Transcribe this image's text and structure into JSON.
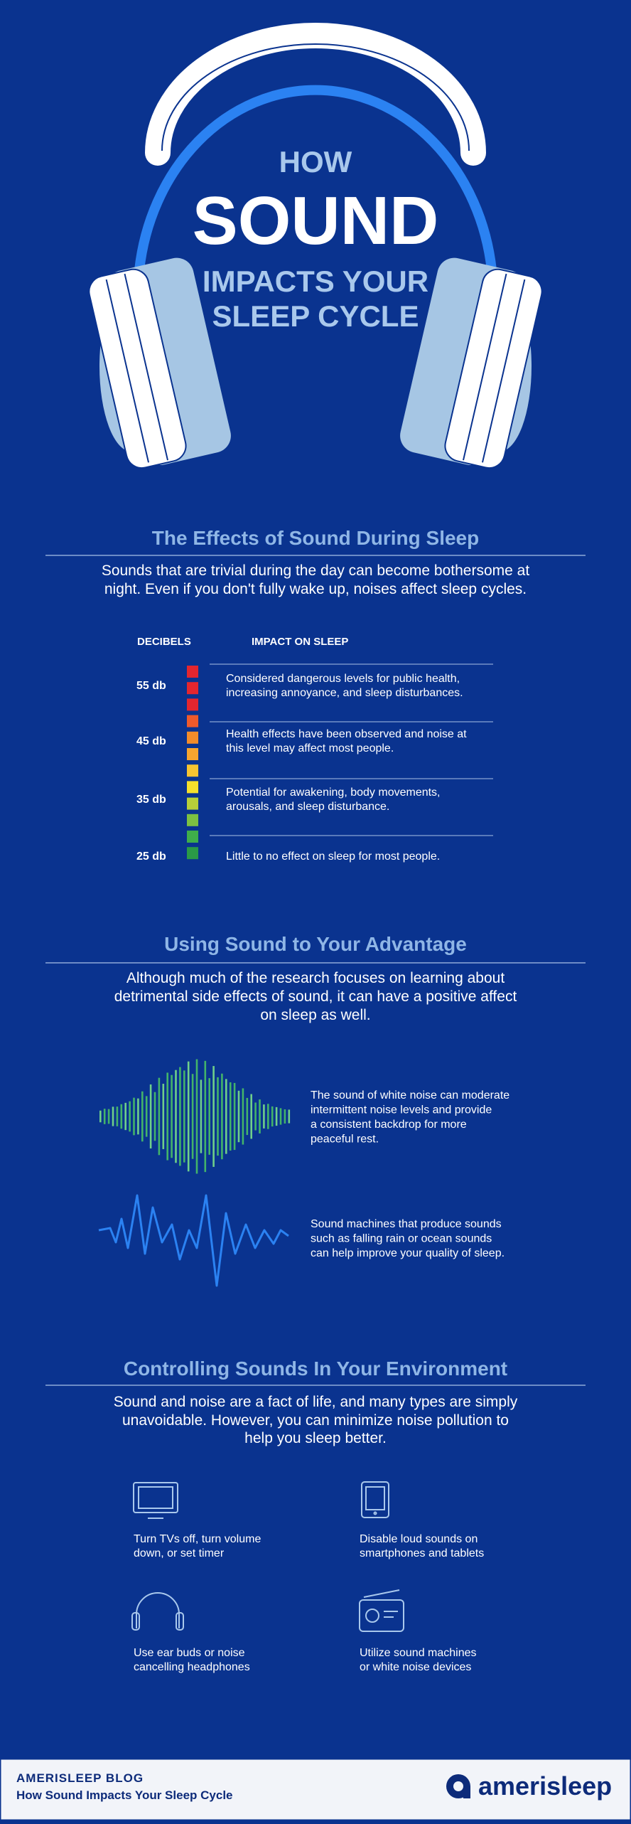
{
  "header": {
    "line1": "HOW",
    "line2": "SOUND",
    "line3": "IMPACTS YOUR",
    "line4": "SLEEP CYCLE"
  },
  "effects": {
    "title": "The Effects of Sound During Sleep",
    "intro": [
      "Sounds that are trivial during the day can become bothersome at",
      "night. Even if you don't fully wake up, noises affect sleep cycles."
    ],
    "columns": [
      "DECIBELS",
      "IMPACT ON SLEEP"
    ],
    "rows": [
      {
        "level": "55 db",
        "impact": [
          "Considered dangerous levels for public health,",
          "increasing annoyance, and sleep disturbances."
        ]
      },
      {
        "level": "45 db",
        "impact": [
          "Health effects have been observed and noise at",
          "this level may affect most people."
        ]
      },
      {
        "level": "35 db",
        "impact": [
          "Potential for awakening, body movements,",
          "arousals, and sleep disturbance."
        ]
      },
      {
        "level": "25 db",
        "impact": [
          "Little to no effect on sleep for most people."
        ]
      }
    ]
  },
  "advantage": {
    "title": "Using Sound to Your Advantage",
    "intro": [
      "Although much of the research focuses on learning about",
      "detrimental side effects of sound, it can have a positive affect",
      "on sleep as well."
    ],
    "items": [
      {
        "text": [
          "The sound of white noise can moderate",
          "intermittent noise levels and provide",
          "a consistent backdrop for more",
          "peaceful rest."
        ]
      },
      {
        "text": [
          "Sound machines that produce sounds",
          "such as falling rain or ocean sounds",
          "can help improve your quality of sleep."
        ]
      }
    ]
  },
  "controlling": {
    "title": "Controlling Sounds In Your Environment",
    "intro": [
      "Sound and noise are a fact of life, and many types are simply",
      "unavoidable. However, you can minimize noise pollution to",
      "help you sleep better."
    ],
    "tips": [
      {
        "text": [
          "Turn TVs off, turn volume",
          "down, or set timer"
        ]
      },
      {
        "text": [
          "Disable loud sounds on",
          "smartphones and tablets"
        ]
      },
      {
        "text": [
          "Use ear buds or noise",
          "cancelling headphones"
        ]
      },
      {
        "text": [
          "Utilize sound machines",
          "or white noise devices"
        ]
      }
    ]
  },
  "footer": {
    "blog": "AMERISLEEP BLOG",
    "article": "How Sound Impacts Your Sleep Cycle",
    "brand": "amerisleep"
  }
}
